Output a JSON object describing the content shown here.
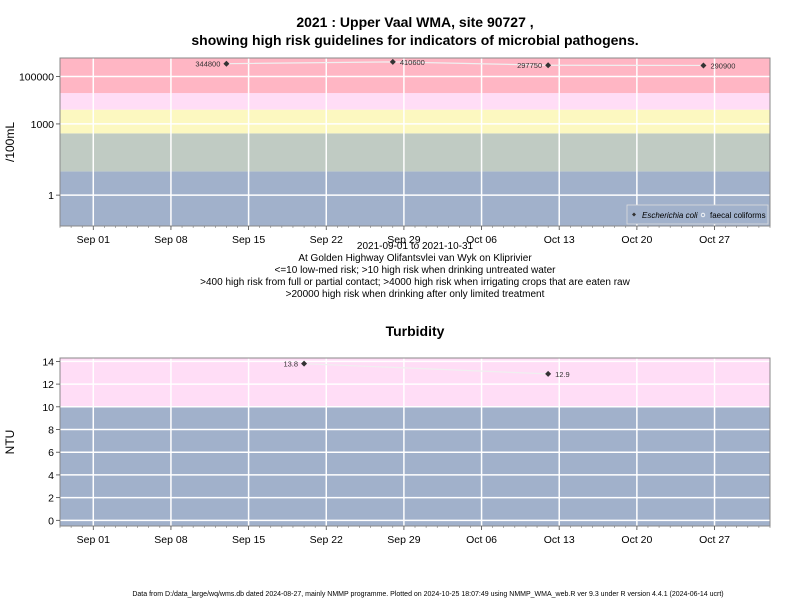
{
  "colors": {
    "band_low": "#a1b1cb",
    "band_med": "#c0cbc3",
    "band_yellow": "#fcf8c0",
    "band_pink": "#ffddf6",
    "band_red": "#ffb6c4",
    "grid": "#ffffff",
    "line": "#f0f0f0",
    "marker": "#333333"
  },
  "chart_data": [
    {
      "type": "line",
      "title": "2021 : Upper Vaal WMA, site 90727 ,",
      "subtitle": "showing high risk guidelines for indicators of microbial pathogens.",
      "ylabel": "/100mL",
      "yscale": "log",
      "yticks": [
        1,
        1000,
        100000
      ],
      "ytick_labels": [
        "1",
        "1000",
        "100000"
      ],
      "xticks": [
        "2021-09-01",
        "2021-09-08",
        "2021-09-15",
        "2021-09-22",
        "2021-09-29",
        "2021-10-06",
        "2021-10-13",
        "2021-10-20",
        "2021-10-27"
      ],
      "xtick_labels": [
        "Sep 01",
        "Sep 08",
        "Sep 15",
        "Sep 22",
        "Sep 29",
        "Oct 06",
        "Oct 13",
        "Oct 20",
        "Oct 27"
      ],
      "xlim": [
        "2021-08-29",
        "2021-11-01"
      ],
      "bands": [
        {
          "from": 0.05,
          "to": 10,
          "color": "#a1b1cb"
        },
        {
          "from": 10,
          "to": 400,
          "color": "#c0cbc3"
        },
        {
          "from": 400,
          "to": 4000,
          "color": "#fcf8c0"
        },
        {
          "from": 4000,
          "to": 20000,
          "color": "#ffddf6"
        },
        {
          "from": 20000,
          "to": 600000,
          "color": "#ffb6c4"
        }
      ],
      "series": [
        {
          "name": "Escherichia coli",
          "x": [
            "2021-09-13",
            "2021-09-28",
            "2021-10-12",
            "2021-10-26"
          ],
          "y": [
            344800,
            410600,
            297750,
            290900
          ],
          "labels": [
            "344800",
            "410600",
            "297750",
            "290900"
          ]
        }
      ],
      "legend": {
        "position": "bottom-right",
        "entries": [
          "Escherichia coli",
          "faecal coliforms"
        ]
      },
      "notes": [
        "2021-09-01 to 2021-10-31",
        "At Golden Highway Olifantsvlei van Wyk on Kliprivier",
        "<=10 low-med risk; >10 high risk when drinking untreated water",
        ">400 high risk from full or partial contact; >4000 high risk when irrigating crops that are eaten raw",
        ">20000 high risk when drinking after only limited treatment"
      ]
    },
    {
      "type": "line",
      "title": "Turbidity",
      "ylabel": "NTU",
      "ylim": [
        -0.5,
        14.3
      ],
      "yticks": [
        0,
        2,
        4,
        6,
        8,
        10,
        12,
        14
      ],
      "xticks": [
        "2021-09-01",
        "2021-09-08",
        "2021-09-15",
        "2021-09-22",
        "2021-09-29",
        "2021-10-06",
        "2021-10-13",
        "2021-10-20",
        "2021-10-27"
      ],
      "xtick_labels": [
        "Sep 01",
        "Sep 08",
        "Sep 15",
        "Sep 22",
        "Sep 29",
        "Oct 06",
        "Oct 13",
        "Oct 20",
        "Oct 27"
      ],
      "xlim": [
        "2021-08-29",
        "2021-11-01"
      ],
      "bands": [
        {
          "from": -0.5,
          "to": 10,
          "color": "#a1b1cb"
        },
        {
          "from": 10,
          "to": 14.3,
          "color": "#ffddf6"
        }
      ],
      "series": [
        {
          "x": [
            "2021-09-20",
            "2021-10-12"
          ],
          "y": [
            13.8,
            12.9
          ],
          "labels": [
            "13.8",
            "12.9"
          ]
        }
      ]
    }
  ],
  "footer": "Data from D:/data_large/wq/wms.db dated 2024-08-27, mainly NMMP programme. Plotted on 2024-10-25 18:07:49 using NMMP_WMA_web.R ver 9.3 under R version 4.4.1 (2024-06-14 ucrt)"
}
